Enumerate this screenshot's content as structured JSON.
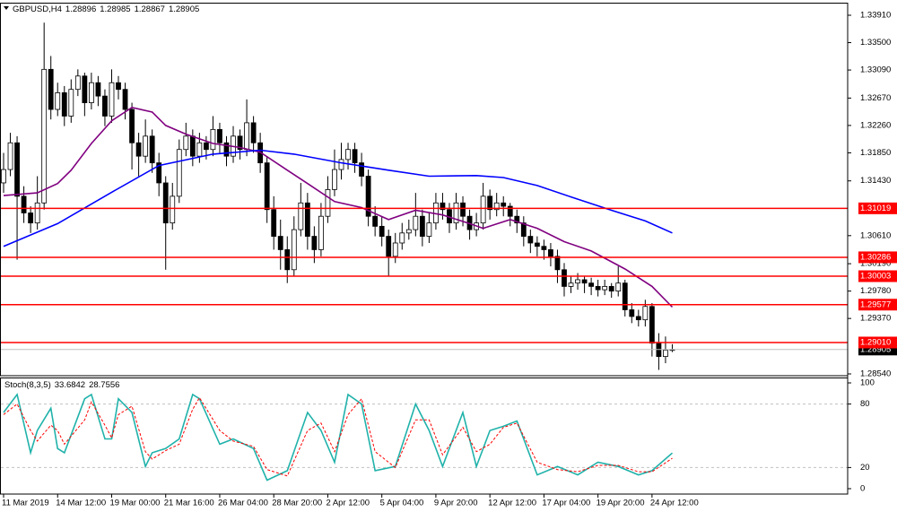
{
  "chart_data": [
    {
      "type": "candlestick",
      "title": "GBPUSD,H4",
      "up_color": "#ffffff",
      "down_color": "#000000",
      "outline_color": "#000000",
      "candles": [
        [
          1.314,
          1.3185,
          1.3125,
          1.316
        ],
        [
          1.316,
          1.3215,
          1.315,
          1.32
        ],
        [
          1.32,
          1.321,
          1.3025,
          1.312
        ],
        [
          1.312,
          1.3135,
          1.308,
          1.3095
        ],
        [
          1.3095,
          1.3105,
          1.3065,
          1.308
        ],
        [
          1.308,
          1.315,
          1.307,
          1.311
        ],
        [
          1.311,
          1.338,
          1.31,
          1.331
        ],
        [
          1.331,
          1.333,
          1.3235,
          1.325
        ],
        [
          1.325,
          1.329,
          1.324,
          1.3275
        ],
        [
          1.3275,
          1.3285,
          1.3225,
          1.324
        ],
        [
          1.324,
          1.3295,
          1.323,
          1.328
        ],
        [
          1.328,
          1.331,
          1.327,
          1.33
        ],
        [
          1.33,
          1.3305,
          1.324,
          1.326
        ],
        [
          1.326,
          1.3305,
          1.325,
          1.329
        ],
        [
          1.329,
          1.33,
          1.3255,
          1.327
        ],
        [
          1.327,
          1.328,
          1.3225,
          1.324
        ],
        [
          1.324,
          1.331,
          1.323,
          1.329
        ],
        [
          1.329,
          1.33,
          1.3265,
          1.328
        ],
        [
          1.328,
          1.329,
          1.3235,
          1.325
        ],
        [
          1.325,
          1.326,
          1.316,
          1.32
        ],
        [
          1.32,
          1.3215,
          1.315,
          1.318
        ],
        [
          1.318,
          1.3235,
          1.317,
          1.321
        ],
        [
          1.321,
          1.322,
          1.3155,
          1.317
        ],
        [
          1.317,
          1.3185,
          1.312,
          1.314
        ],
        [
          1.314,
          1.315,
          1.301,
          1.308
        ],
        [
          1.308,
          1.314,
          1.307,
          1.312
        ],
        [
          1.312,
          1.3205,
          1.311,
          1.319
        ],
        [
          1.319,
          1.323,
          1.318,
          1.321
        ],
        [
          1.321,
          1.322,
          1.3165,
          1.318
        ],
        [
          1.318,
          1.3215,
          1.317,
          1.32
        ],
        [
          1.32,
          1.321,
          1.3175,
          1.319
        ],
        [
          1.319,
          1.324,
          1.318,
          1.322
        ],
        [
          1.322,
          1.323,
          1.3185,
          1.32
        ],
        [
          1.32,
          1.321,
          1.3165,
          1.318
        ],
        [
          1.318,
          1.3225,
          1.317,
          1.321
        ],
        [
          1.321,
          1.322,
          1.3175,
          1.319
        ],
        [
          1.319,
          1.3265,
          1.318,
          1.323
        ],
        [
          1.323,
          1.324,
          1.3185,
          1.32
        ],
        [
          1.32,
          1.3215,
          1.3155,
          1.317
        ],
        [
          1.317,
          1.318,
          1.308,
          1.31
        ],
        [
          1.31,
          1.312,
          1.304,
          1.306
        ],
        [
          1.306,
          1.3085,
          1.301,
          1.304
        ],
        [
          1.304,
          1.306,
          1.299,
          1.301
        ],
        [
          1.301,
          1.309,
          1.3,
          1.307
        ],
        [
          1.307,
          1.314,
          1.306,
          1.311
        ],
        [
          1.311,
          1.3125,
          1.304,
          1.306
        ],
        [
          1.306,
          1.3075,
          1.302,
          1.304
        ],
        [
          1.304,
          1.311,
          1.303,
          1.309
        ],
        [
          1.309,
          1.315,
          1.308,
          1.313
        ],
        [
          1.313,
          1.319,
          1.312,
          1.316
        ],
        [
          1.316,
          1.32,
          1.3145,
          1.3175
        ],
        [
          1.3175,
          1.32,
          1.316,
          1.319
        ],
        [
          1.319,
          1.32,
          1.3155,
          1.317
        ],
        [
          1.317,
          1.3185,
          1.3135,
          1.315
        ],
        [
          1.315,
          1.316,
          1.3075,
          1.309
        ],
        [
          1.309,
          1.3105,
          1.306,
          1.3075
        ],
        [
          1.3075,
          1.309,
          1.3045,
          1.306
        ],
        [
          1.306,
          1.307,
          1.3,
          1.303
        ],
        [
          1.303,
          1.3065,
          1.302,
          1.305
        ],
        [
          1.305,
          1.308,
          1.304,
          1.3065
        ],
        [
          1.3065,
          1.3085,
          1.3055,
          1.307
        ],
        [
          1.307,
          1.3125,
          1.306,
          1.309
        ],
        [
          1.309,
          1.31,
          1.3045,
          1.306
        ],
        [
          1.306,
          1.3095,
          1.305,
          1.308
        ],
        [
          1.308,
          1.3125,
          1.307,
          1.311
        ],
        [
          1.311,
          1.3125,
          1.3085,
          1.31
        ],
        [
          1.31,
          1.311,
          1.3065,
          1.308
        ],
        [
          1.308,
          1.3125,
          1.307,
          1.311
        ],
        [
          1.311,
          1.312,
          1.3075,
          1.309
        ],
        [
          1.309,
          1.31,
          1.3055,
          1.307
        ],
        [
          1.307,
          1.3095,
          1.306,
          1.308
        ],
        [
          1.308,
          1.314,
          1.307,
          1.312
        ],
        [
          1.312,
          1.313,
          1.3085,
          1.31
        ],
        [
          1.31,
          1.3125,
          1.309,
          1.311
        ],
        [
          1.311,
          1.312,
          1.309,
          1.3105
        ],
        [
          1.3105,
          1.311,
          1.3075,
          1.309
        ],
        [
          1.309,
          1.31,
          1.3065,
          1.308
        ],
        [
          1.308,
          1.309,
          1.3045,
          1.306
        ],
        [
          1.306,
          1.307,
          1.3035,
          1.305
        ],
        [
          1.305,
          1.306,
          1.303,
          1.3045
        ],
        [
          1.3045,
          1.3055,
          1.3025,
          1.304
        ],
        [
          1.304,
          1.305,
          1.3015,
          1.303
        ],
        [
          1.303,
          1.304,
          1.299,
          1.301
        ],
        [
          1.301,
          1.302,
          1.297,
          1.2985
        ],
        [
          1.2985,
          1.3,
          1.2975,
          1.299
        ],
        [
          1.299,
          1.3005,
          1.298,
          1.2995
        ],
        [
          1.2995,
          1.3,
          1.2975,
          1.299
        ],
        [
          1.299,
          1.2998,
          1.2972,
          1.2985
        ],
        [
          1.2985,
          1.2995,
          1.297,
          1.298
        ],
        [
          1.298,
          1.2995,
          1.2972,
          1.2985
        ],
        [
          1.2985,
          1.299,
          1.2968,
          1.2978
        ],
        [
          1.2978,
          1.3015,
          1.297,
          1.299
        ],
        [
          1.299,
          1.2995,
          1.294,
          1.295
        ],
        [
          1.295,
          1.296,
          1.293,
          1.294
        ],
        [
          1.294,
          1.295,
          1.2925,
          1.2935
        ],
        [
          1.2935,
          1.2965,
          1.2925,
          1.2955
        ],
        [
          1.2955,
          1.296,
          1.288,
          1.29
        ],
        [
          1.29,
          1.2915,
          1.286,
          1.288
        ],
        [
          1.288,
          1.291,
          1.287,
          1.28896
        ],
        [
          1.28896,
          1.28985,
          1.28867,
          1.28905
        ]
      ],
      "series": [
        {
          "color": "#800080",
          "x": [
            0,
            5,
            8,
            10,
            13,
            16,
            19,
            22,
            24,
            27,
            31,
            35,
            38,
            42,
            45,
            49,
            53,
            57,
            61,
            65,
            69,
            71,
            75,
            79,
            83,
            87,
            92,
            96,
            99
          ],
          "values": [
            1.3121,
            1.3125,
            1.3139,
            1.3159,
            1.3199,
            1.3233,
            1.3253,
            1.3246,
            1.3226,
            1.3213,
            1.3199,
            1.3193,
            1.3186,
            1.3159,
            1.3139,
            1.3112,
            1.3103,
            1.3085,
            1.3099,
            1.3092,
            1.3079,
            1.3072,
            1.3085,
            1.3072,
            1.3052,
            1.3038,
            1.3011,
            1.2985,
            1.2954
          ]
        },
        {
          "color": "#0000ff",
          "x": [
            0,
            8,
            16,
            23,
            31,
            38,
            43,
            50,
            57,
            63,
            70,
            74,
            79,
            84,
            90,
            95,
            99
          ],
          "values": [
            1.3045,
            1.3079,
            1.3126,
            1.3166,
            1.3183,
            1.3189,
            1.3183,
            1.317,
            1.3159,
            1.315,
            1.3151,
            1.3148,
            1.3136,
            1.3119,
            1.3099,
            1.3083,
            1.3065
          ]
        }
      ],
      "levels": [
        1.31019,
        1.30286,
        1.30003,
        1.29577,
        {
          "value": 1.2901,
          "label": "1.29010"
        }
      ],
      "level_color": "#ff0000",
      "last_color": "#c0c0c0",
      "ylim": [
        1.28513,
        1.34098
      ],
      "yticks": [
        {
          "value": 1.3391,
          "label": "1.33910"
        },
        {
          "value": 1.335,
          "label": "1.33500"
        },
        {
          "value": 1.3309,
          "label": "1.33090"
        },
        {
          "value": 1.3267,
          "label": "1.32670"
        },
        {
          "value": 1.3226,
          "label": "1.32260"
        },
        {
          "value": 1.3185,
          "label": "1.31850"
        },
        {
          "value": 1.3143,
          "label": "1.31430"
        },
        {
          "value": 1.3061,
          "label": "1.30610"
        },
        {
          "value": 1.3019,
          "label": "1.30190"
        },
        {
          "value": 1.2978,
          "label": "1.29780"
        },
        {
          "value": 1.2937,
          "label": "1.29370"
        },
        {
          "value": 1.2854,
          "label": "1.28540"
        }
      ],
      "xticks": [
        {
          "value": 0,
          "label": "11 Mar 2019"
        },
        {
          "value": 8,
          "label": "14 Mar 12:00"
        },
        {
          "value": 16,
          "label": "19 Mar 00:00"
        },
        {
          "value": 24,
          "label": "21 Mar 16:00"
        },
        {
          "value": 32,
          "label": "26 Mar 04:00"
        },
        {
          "value": 40,
          "label": "28 Mar 20:00"
        },
        {
          "value": 48,
          "label": "2 Apr 12:00"
        },
        {
          "value": 56,
          "label": "5 Apr 04:00"
        },
        {
          "value": 64,
          "label": "9 Apr 20:00"
        },
        {
          "value": 72,
          "label": "12 Apr 12:00"
        },
        {
          "value": 80,
          "label": "17 Apr 04:00"
        },
        {
          "value": 88,
          "label": "19 Apr 20:00"
        },
        {
          "value": 96,
          "label": "24 Apr 12:00"
        }
      ],
      "grid": false
    },
    {
      "type": "line",
      "title": "Stoch(8,3,5)",
      "series": [
        {
          "color": "#20b2aa",
          "style": "solid",
          "x": [
            0,
            2,
            4,
            5,
            7,
            8,
            9,
            12,
            13,
            15,
            16,
            17,
            19,
            21,
            22,
            24,
            26,
            28,
            29,
            32,
            34,
            37,
            39,
            42,
            45,
            47,
            49,
            51,
            53,
            55,
            58,
            61,
            63,
            65,
            68,
            70,
            72,
            74,
            76,
            79,
            82,
            85,
            88,
            91,
            94,
            96,
            99
          ],
          "values": [
            72,
            89,
            34,
            55,
            76,
            38,
            34,
            85,
            89,
            47,
            47,
            85,
            72,
            21,
            34,
            38,
            47,
            89,
            85,
            42,
            47,
            38,
            8,
            17,
            72,
            55,
            25,
            89,
            80,
            17,
            21,
            80,
            55,
            21,
            72,
            21,
            55,
            59,
            64,
            13,
            21,
            13,
            25,
            21,
            13,
            17,
            33.6842
          ]
        },
        {
          "color": "#ff0000",
          "style": "dashed",
          "x": [
            0,
            2,
            4,
            5,
            7,
            8,
            9,
            12,
            13,
            15,
            16,
            17,
            19,
            21,
            22,
            24,
            26,
            28,
            29,
            32,
            34,
            37,
            39,
            42,
            45,
            47,
            49,
            51,
            53,
            55,
            58,
            61,
            63,
            65,
            68,
            70,
            72,
            74,
            76,
            79,
            82,
            85,
            88,
            91,
            94,
            96,
            99
          ],
          "values": [
            70,
            80,
            55,
            45,
            60,
            55,
            42,
            65,
            82,
            60,
            48,
            70,
            78,
            35,
            28,
            36,
            42,
            75,
            86,
            55,
            45,
            40,
            18,
            12,
            55,
            62,
            35,
            70,
            85,
            35,
            20,
            65,
            65,
            32,
            58,
            35,
            42,
            58,
            62,
            25,
            18,
            16,
            22,
            22,
            16,
            16,
            28.7556
          ]
        }
      ],
      "ylim": [
        -5.1,
        105.1
      ],
      "yticks": [
        0,
        20,
        80,
        100
      ],
      "grid": true
    }
  ]
}
